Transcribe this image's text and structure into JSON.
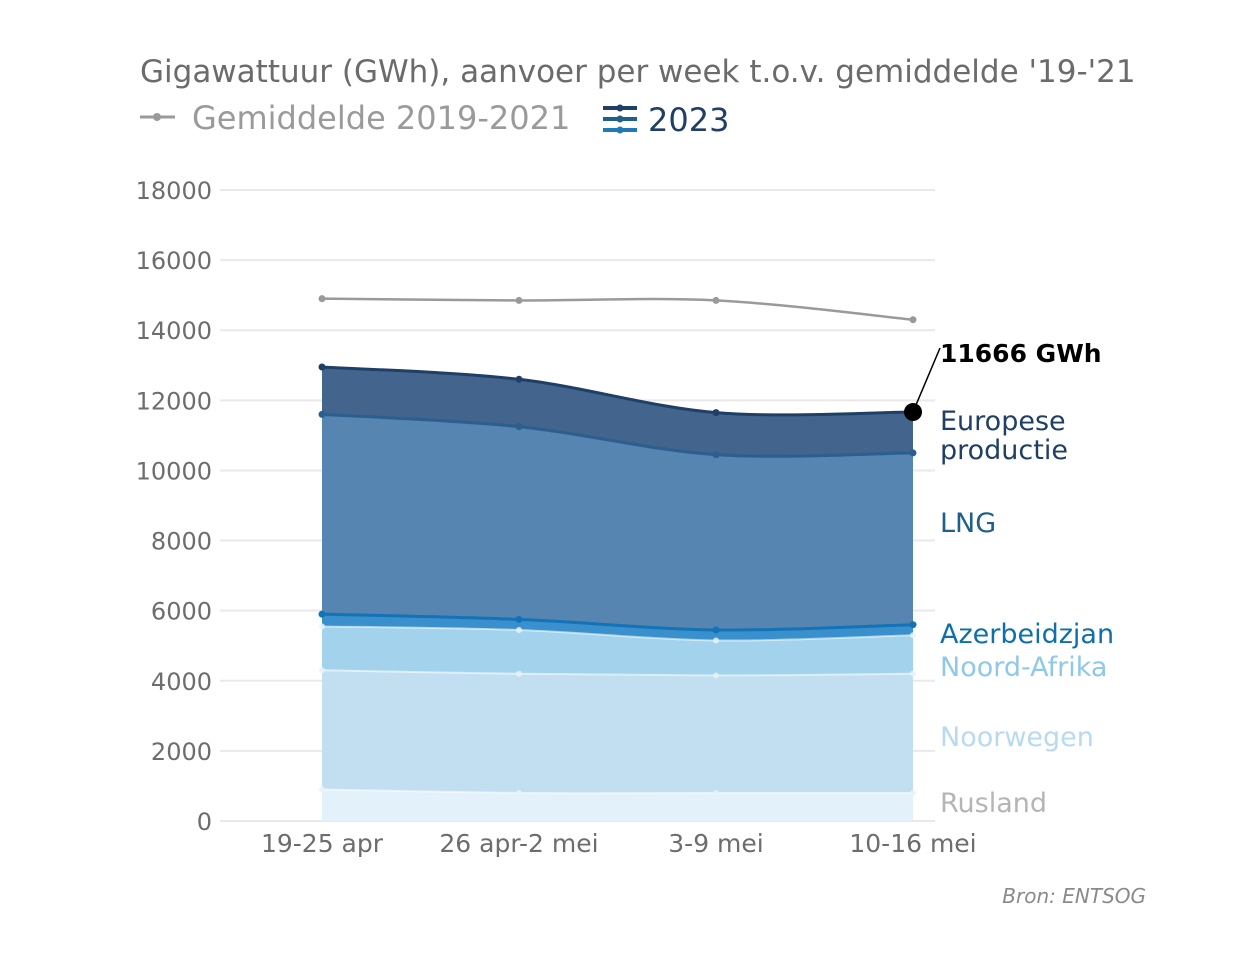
{
  "chart_data": {
    "type": "area",
    "title": "Gigawattuur (GWh), aanvoer per week t.o.v. gemiddelde '19-'21",
    "categories": [
      "19-25 apr",
      "26 apr-2 mei",
      "3-9 mei",
      "10-16 mei"
    ],
    "ylim": [
      0,
      18000
    ],
    "yticks": [
      0,
      2000,
      4000,
      6000,
      8000,
      10000,
      12000,
      14000,
      16000,
      18000
    ],
    "grid": true,
    "legend": {
      "placement": "top-left",
      "items": [
        {
          "name": "Gemiddelde 2019-2021",
          "color": "#9a9a9a"
        },
        {
          "name": "2023",
          "color": "#1f4e79"
        }
      ]
    },
    "average_line": {
      "name": "Gemiddelde 2019-2021",
      "values": [
        14900,
        14850,
        14850,
        14300
      ],
      "color": "#9a9a9a"
    },
    "stacked_series": [
      {
        "name": "Rusland",
        "values": [
          900,
          800,
          800,
          800
        ],
        "color": "#e3f1fa",
        "label_color": "#b5b5b5"
      },
      {
        "name": "Noorwegen",
        "values": [
          3400,
          3400,
          3350,
          3400
        ],
        "color": "#c2dff1",
        "label_color": "#b7daf0"
      },
      {
        "name": "Noord-Afrika",
        "values": [
          1250,
          1250,
          1000,
          1100
        ],
        "color": "#a3d3ec",
        "label_color": "#8fc8e8"
      },
      {
        "name": "Azerbeidzjan",
        "values": [
          350,
          300,
          300,
          300
        ],
        "color": "#3a90cc",
        "label_color": "#0f6fad"
      },
      {
        "name": "LNG",
        "values": [
          5700,
          5500,
          5000,
          4900
        ],
        "color": "#5585b0",
        "label_color": "#1f5f8b"
      },
      {
        "name": "Europese productie",
        "values": [
          1350,
          1350,
          1200,
          1166
        ],
        "color": "#42648d",
        "label_color": "#1f3f66"
      }
    ],
    "series_label_lines": {
      "Europese productie": [
        "Europese",
        "productie"
      ]
    },
    "annotation": {
      "text": "11666 GWh",
      "category_index": 3,
      "value": 11666
    },
    "source": "Bron: ENTSOG"
  }
}
